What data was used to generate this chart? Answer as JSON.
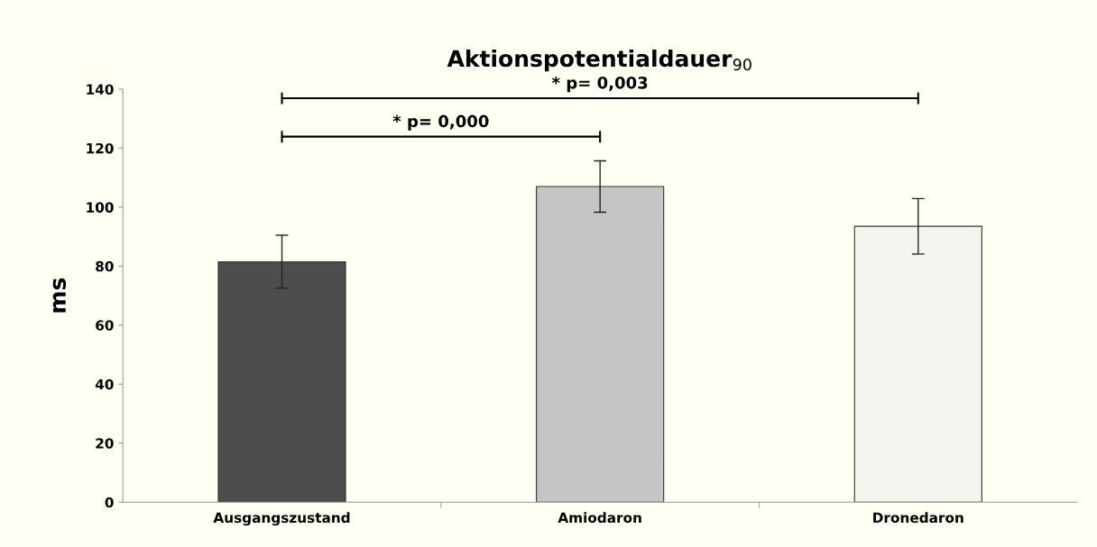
{
  "chart_data": {
    "type": "bar",
    "title": "Aktionspotentialdauer$_{90}$",
    "ylabel": "ms",
    "categories": [
      "Ausgangszustand",
      "Amiodaron",
      "Dronedaron"
    ],
    "values": [
      81.5,
      107,
      93.5
    ],
    "errors": [
      9,
      8.7,
      9.4
    ],
    "colors": [
      "#4d4d4d",
      "#c5c5c5",
      "#f6f4ef"
    ],
    "ylim": [
      0,
      140
    ],
    "yticks": [
      0,
      20,
      40,
      60,
      80,
      100,
      120,
      140
    ],
    "annotations": [
      "* p= 0,000",
      "* p= 0,003"
    ],
    "grid": false,
    "legend": false
  }
}
